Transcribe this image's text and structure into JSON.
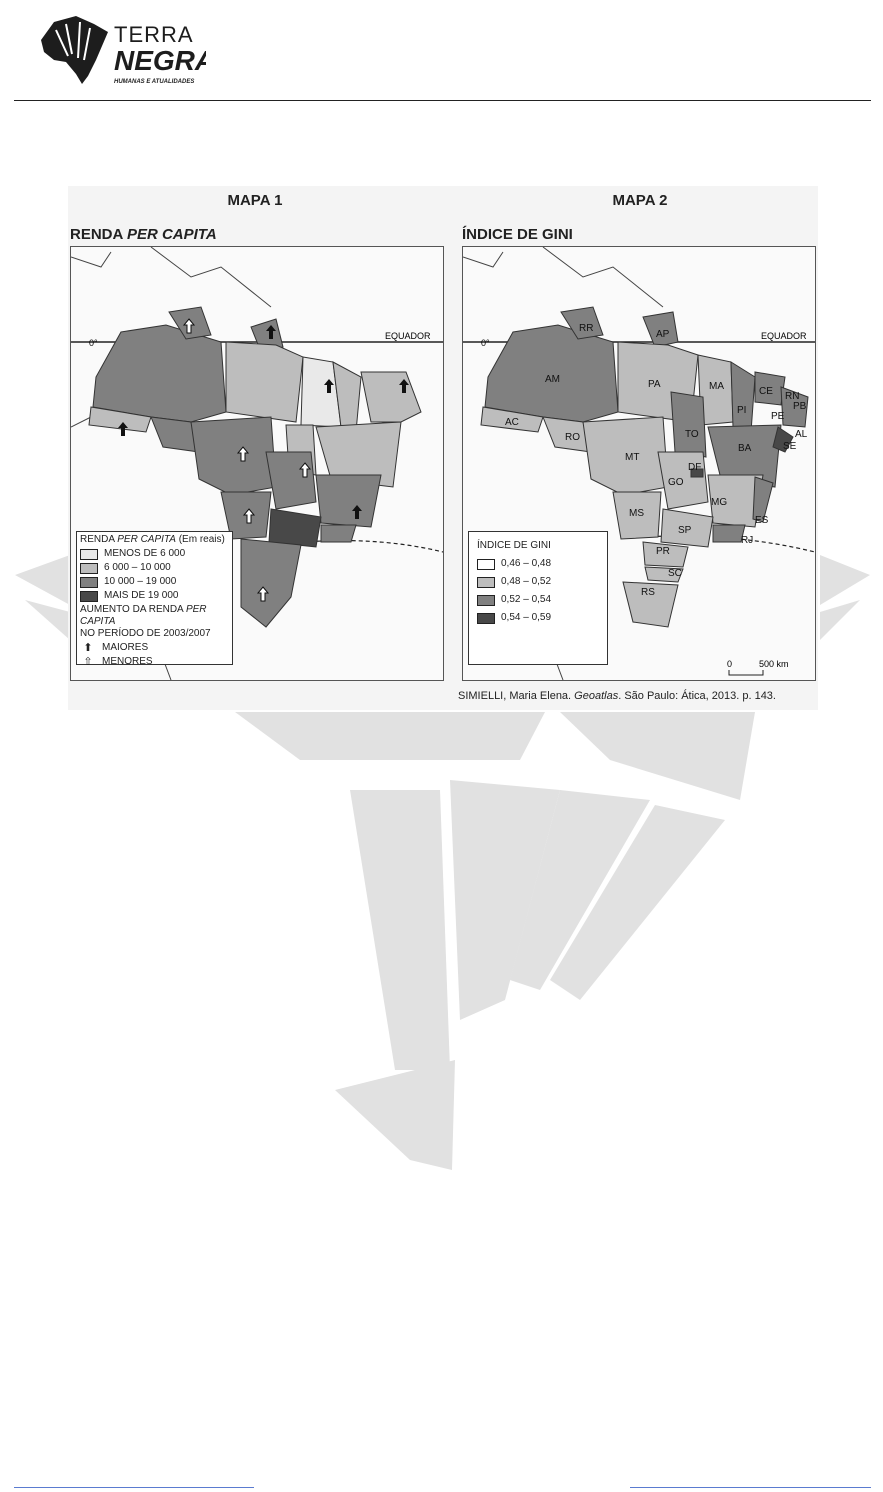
{
  "logo": {
    "line1": "TERRA",
    "line2": "NEGRA",
    "tagline": "HUMANAS E ATUALIDADES"
  },
  "map1": {
    "title": "MAPA 1",
    "subtitle_main": "RENDA ",
    "subtitle_italic": "PER CAPITA",
    "equator_label": "EQUADOR",
    "zero_label": "0°",
    "legend": {
      "heading_main": "RENDA ",
      "heading_italic": "PER CAPITA",
      "heading_suffix": " (Em reais)",
      "classes": [
        {
          "label": "MENOS DE 6 000",
          "color": "#e9e9e9"
        },
        {
          "label": "6 000 – 10 000",
          "color": "#bdbdbd"
        },
        {
          "label": "10 000 – 19 000",
          "color": "#808080"
        },
        {
          "label": "MAIS DE 19 000",
          "color": "#484848"
        }
      ],
      "increase_heading_main": "AUMENTO DA RENDA ",
      "increase_heading_italic": "PER CAPITA",
      "increase_period": "NO PERÍODO DE 2003/2007",
      "increase_items": [
        {
          "label": "MAIORES",
          "icon": "filled-up-arrow-icon"
        },
        {
          "label": "MENORES",
          "icon": "outline-up-arrow-icon"
        }
      ]
    }
  },
  "map2": {
    "title": "MAPA 2",
    "subtitle": "ÍNDICE DE GINI",
    "equator_label": "EQUADOR",
    "zero_label": "0°",
    "legend": {
      "heading": "ÍNDICE DE GINI",
      "classes": [
        {
          "label": "0,46 – 0,48",
          "color": "#ffffff"
        },
        {
          "label": "0,48 – 0,52",
          "color": "#bdbdbd"
        },
        {
          "label": "0,52 – 0,54",
          "color": "#808080"
        },
        {
          "label": "0,54 – 0,59",
          "color": "#484848"
        }
      ]
    },
    "scale_zero": "0",
    "scale_label": "500 km",
    "states": [
      "RR",
      "AP",
      "AM",
      "PA",
      "MA",
      "CE",
      "RN",
      "PB",
      "PE",
      "PI",
      "AL",
      "SE",
      "AC",
      "RO",
      "TO",
      "BA",
      "MT",
      "DF",
      "GO",
      "MG",
      "ES",
      "MS",
      "SP",
      "RJ",
      "PR",
      "SC",
      "RS"
    ]
  },
  "citation": {
    "author": "SIMIELLI, Maria Elena. ",
    "work": "Geoatlas",
    "rest": ". São Paulo: Ática, 2013. p. 143."
  }
}
